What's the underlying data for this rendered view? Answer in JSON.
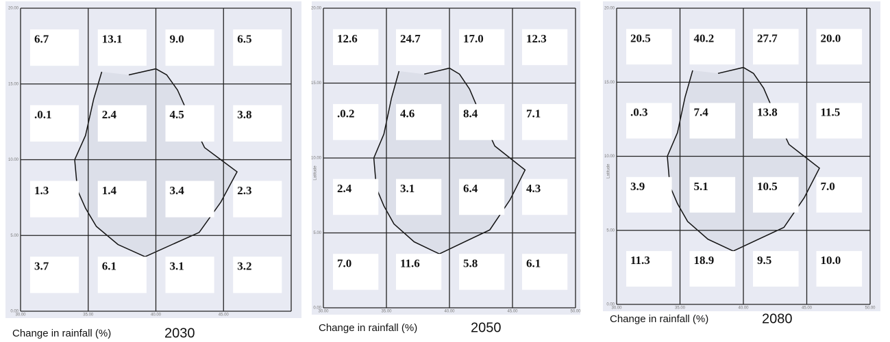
{
  "panels": [
    {
      "caption": "Change in rainfall (%)",
      "year": "2030",
      "cells": [
        [
          "6.7",
          "13.1",
          "9.0",
          "6.5"
        ],
        [
          ".0.1",
          "2.4",
          "4.5",
          "3.8"
        ],
        [
          "1.3",
          "1.4",
          "3.4",
          "2.3"
        ],
        [
          "3.7",
          "6.1",
          "3.1",
          "3.2"
        ]
      ],
      "y_ticks": [
        "20.00",
        "15.00",
        "10.00",
        "5.00",
        "0.00"
      ],
      "x_ticks": [
        "30.00",
        "35.00",
        "40.00",
        "45.00"
      ]
    },
    {
      "caption": "Change in rainfall (%)",
      "year": "2050",
      "y_label": "Latitude",
      "cells": [
        [
          "12.6",
          "24.7",
          "17.0",
          "12.3"
        ],
        [
          ".0.2",
          "4.6",
          "8.4",
          "7.1"
        ],
        [
          "2.4",
          "3.1",
          "6.4",
          "4.3"
        ],
        [
          "7.0",
          "11.6",
          "5.8",
          "6.1"
        ]
      ],
      "y_ticks": [
        "20.00",
        "15.00",
        "10.00",
        "5.00",
        "0.00"
      ],
      "x_ticks": [
        "30.00",
        "35.00",
        "40.00",
        "45.00",
        "50.00"
      ]
    },
    {
      "caption": "Change in rainfall (%)",
      "year": "2080",
      "y_label": "Latitude",
      "cells": [
        [
          "20.5",
          "40.2",
          "27.7",
          "20.0"
        ],
        [
          ".0.3",
          "7.4",
          "13.8",
          "11.5"
        ],
        [
          "3.9",
          "5.1",
          "10.5",
          "7.0"
        ],
        [
          "11.3",
          "18.9",
          "9.5",
          "10.0"
        ]
      ],
      "y_ticks": [
        "20.00",
        "15.00",
        "10.00",
        "5.00",
        "0.00"
      ],
      "x_ticks": [
        "30.00",
        "35.00",
        "40.00",
        "45.00",
        "50.00"
      ]
    }
  ]
}
